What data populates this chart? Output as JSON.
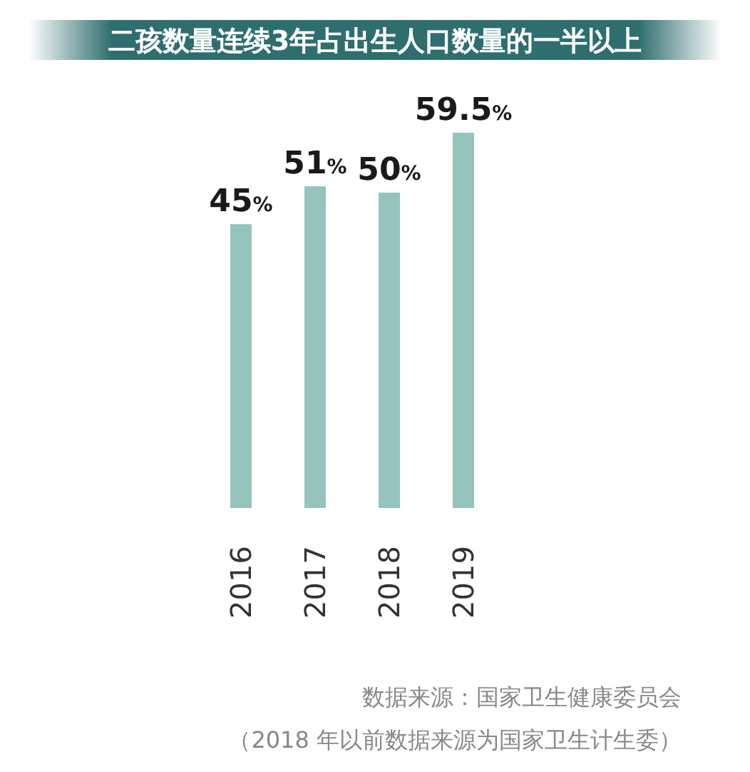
{
  "chart_data": {
    "type": "bar",
    "title": "二孩数量连续3年占出生人口数量的一半以上",
    "categories": [
      "2016",
      "2017",
      "2018",
      "2019"
    ],
    "values": [
      45,
      51,
      50,
      59.5
    ],
    "value_labels": [
      "45%",
      "51%",
      "50%",
      "59.5%"
    ],
    "color": "#94c4bc",
    "annotations": [
      "数据来源：国家卫生健康委员会",
      "（2018 年以前数据来源为国家卫生计生委）"
    ]
  }
}
